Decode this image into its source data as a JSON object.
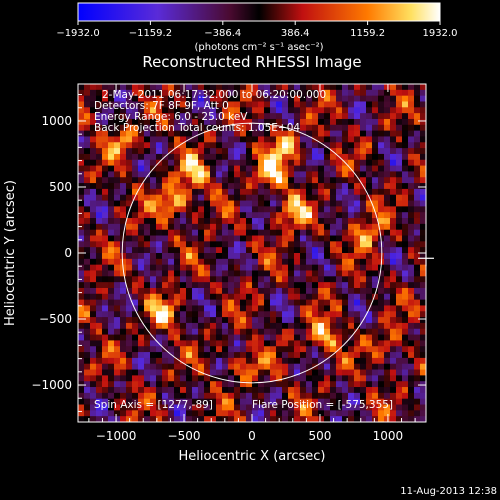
{
  "chart_data": {
    "type": "heatmap",
    "title": "Reconstructed RHESSI Image",
    "xlabel": "Heliocentric X (arcsec)",
    "ylabel": "Heliocentric Y (arcsec)",
    "xlim": [
      -1280,
      1280
    ],
    "ylim": [
      -1280,
      1280
    ],
    "x_ticks": [
      {
        "value": -1000,
        "label": "−1000"
      },
      {
        "value": -500,
        "label": "−500"
      },
      {
        "value": 0,
        "label": "0"
      },
      {
        "value": 500,
        "label": "500"
      },
      {
        "value": 1000,
        "label": "1000"
      }
    ],
    "y_ticks": [
      {
        "value": 1000,
        "label": "1000"
      },
      {
        "value": 500,
        "label": "500"
      },
      {
        "value": 0,
        "label": "0"
      },
      {
        "value": -500,
        "label": "−500"
      },
      {
        "value": -1000,
        "label": "−1000"
      }
    ],
    "colorbar": {
      "min": -1932.0,
      "max": 1932.0,
      "ticks": [
        {
          "value": -1932.0,
          "label": "−1932.0"
        },
        {
          "value": -1159.2,
          "label": "−1159.2"
        },
        {
          "value": -386.4,
          "label": "−386.4"
        },
        {
          "value": 386.4,
          "label": "386.4"
        },
        {
          "value": 1159.2,
          "label": "1159.2"
        },
        {
          "value": 1932.0,
          "label": "1932.0"
        }
      ],
      "unit_label": "(photons cm⁻² s⁻¹ asec⁻²)"
    },
    "solar_limb_radius": 955,
    "flare_position": [
      -575,
      355
    ],
    "info_lines": [
      "2-May-2011 06:17:32.000 to 06:20:00.000",
      "Detectors: 7F 8F 9F, Att 0",
      "Energy Range: 6.0 - 25.0 keV",
      "Back Projection    Total counts: 1.05E+04"
    ],
    "spin_axis": "Spin Axis = [1277,-89]",
    "flare_position_label": "Flare Position = [-575,355]",
    "hotspots": [
      {
        "x": -580,
        "y": 380,
        "value": 1932
      },
      {
        "x": -420,
        "y": 600,
        "value": 1400
      },
      {
        "x": 150,
        "y": 600,
        "value": 1500
      },
      {
        "x": 250,
        "y": 800,
        "value": 1300
      },
      {
        "x": 300,
        "y": 300,
        "value": 1200
      },
      {
        "x": 520,
        "y": -640,
        "value": 1500
      },
      {
        "x": -650,
        "y": -450,
        "value": 1100
      },
      {
        "x": 850,
        "y": 150,
        "value": 1200
      },
      {
        "x": -50,
        "y": -850,
        "value": 1100
      },
      {
        "x": 1000,
        "y": -700,
        "value": 1000
      },
      {
        "x": -950,
        "y": 850,
        "value": 1100
      }
    ]
  },
  "timestamp": "11-Aug-2013 12:38"
}
